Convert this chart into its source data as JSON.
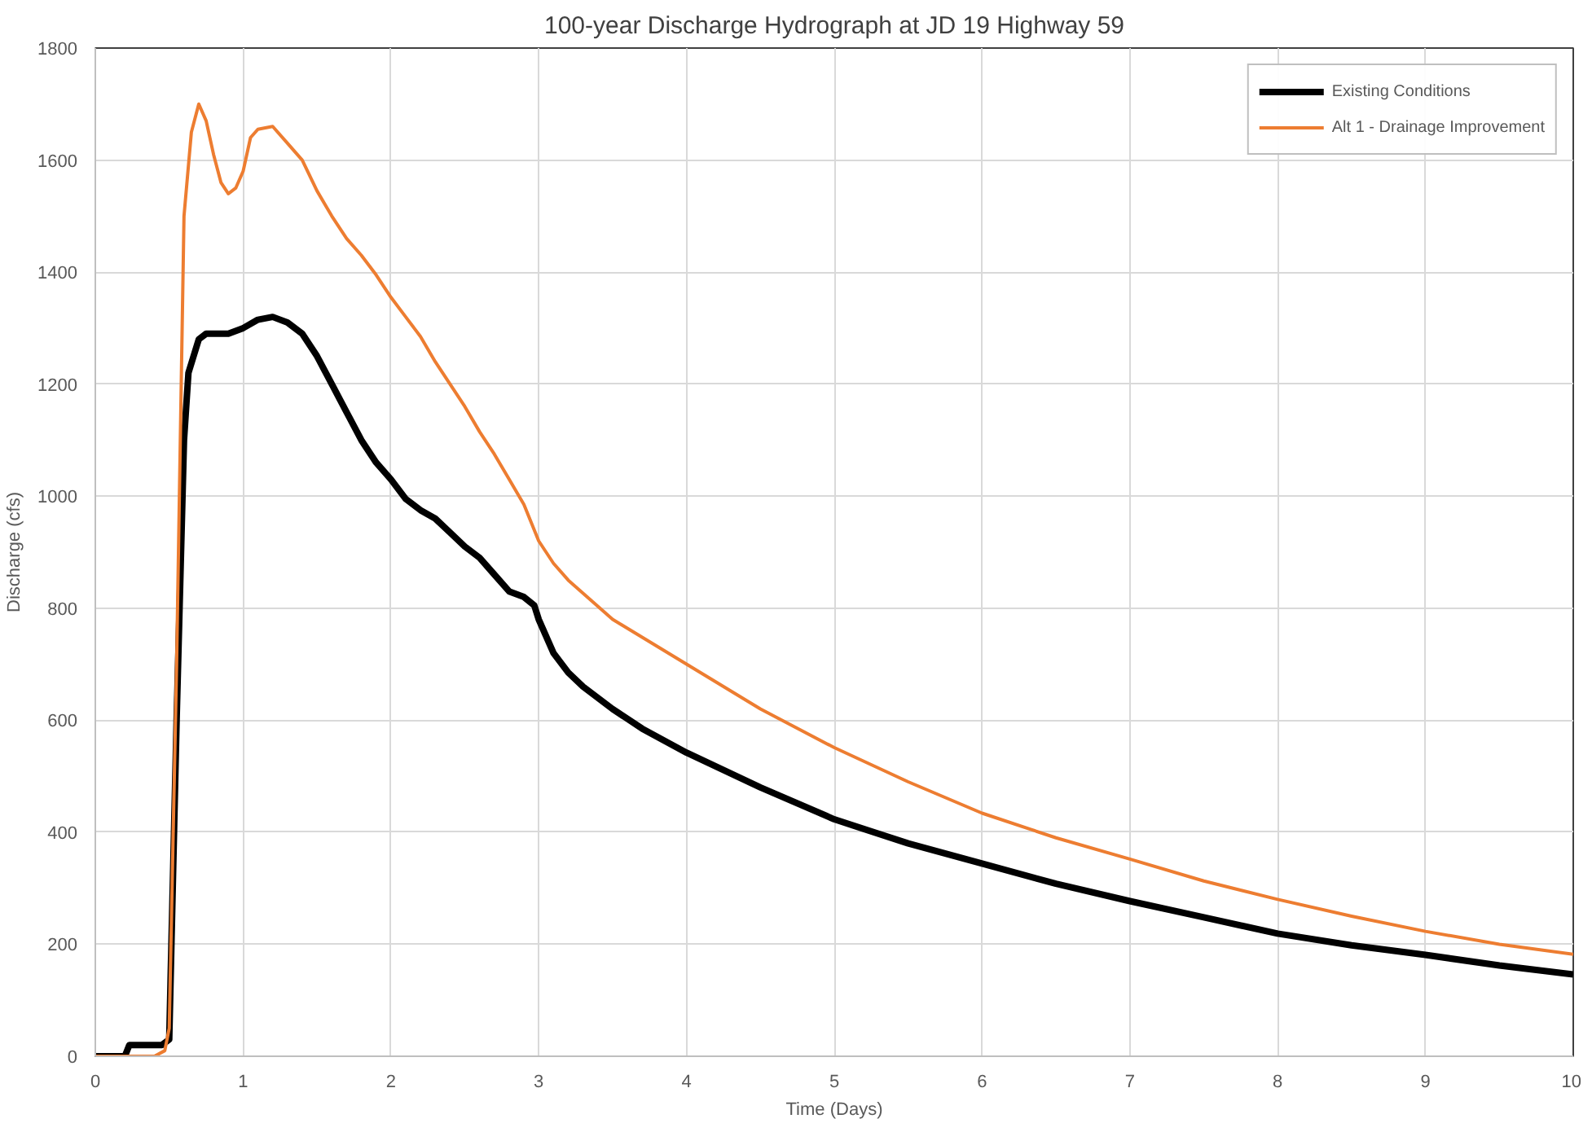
{
  "chart_data": {
    "type": "line",
    "title": "100-year Discharge Hydrograph at JD 19 Highway 59",
    "xlabel": "Time (Days)",
    "ylabel": "Discharge (cfs)",
    "xlim": [
      0,
      10
    ],
    "xticks": [
      0,
      1,
      2,
      3,
      4,
      5,
      6,
      7,
      8,
      9,
      10
    ],
    "ylim": [
      0,
      1800
    ],
    "yticks": [
      0,
      200,
      400,
      600,
      800,
      1000,
      1200,
      1400,
      1600,
      1800
    ],
    "grid": true,
    "legend": "top right",
    "marker": "none",
    "line_style": "solid",
    "series": [
      {
        "name": "Existing Conditions",
        "color": "#000000",
        "x": [
          0,
          0.2,
          0.23,
          0.45,
          0.5,
          0.55,
          0.6,
          0.63,
          0.7,
          0.75,
          0.9,
          1.0,
          1.1,
          1.2,
          1.3,
          1.4,
          1.5,
          1.6,
          1.7,
          1.8,
          1.9,
          2.0,
          2.1,
          2.2,
          2.3,
          2.4,
          2.5,
          2.6,
          2.7,
          2.8,
          2.9,
          2.97,
          3.0,
          3.1,
          3.2,
          3.3,
          3.5,
          3.7,
          4.0,
          4.5,
          5.0,
          5.5,
          6.0,
          6.5,
          7.0,
          7.5,
          8.0,
          8.5,
          9.0,
          9.5,
          10
        ],
        "values": [
          0,
          0,
          20,
          20,
          30,
          600,
          1100,
          1220,
          1280,
          1290,
          1290,
          1300,
          1315,
          1320,
          1310,
          1290,
          1250,
          1200,
          1150,
          1100,
          1060,
          1030,
          995,
          975,
          960,
          935,
          910,
          890,
          860,
          830,
          820,
          805,
          780,
          720,
          685,
          660,
          620,
          585,
          542,
          480,
          423,
          380,
          344,
          308,
          277,
          248,
          219,
          198,
          181,
          162,
          146
        ]
      },
      {
        "name": "Alt 1 - Drainage Improvement",
        "color": "#ed7d31",
        "x": [
          0,
          0.4,
          0.47,
          0.5,
          0.55,
          0.6,
          0.65,
          0.7,
          0.75,
          0.8,
          0.85,
          0.9,
          0.95,
          1.0,
          1.05,
          1.1,
          1.2,
          1.3,
          1.4,
          1.5,
          1.6,
          1.7,
          1.8,
          1.9,
          2.0,
          2.1,
          2.2,
          2.3,
          2.4,
          2.5,
          2.6,
          2.7,
          2.8,
          2.9,
          3.0,
          3.1,
          3.2,
          3.5,
          4.0,
          4.5,
          5.0,
          5.5,
          6.0,
          6.5,
          7.0,
          7.5,
          8.0,
          8.5,
          9.0,
          9.5,
          10
        ],
        "values": [
          0,
          0,
          10,
          50,
          700,
          1500,
          1650,
          1700,
          1670,
          1610,
          1560,
          1540,
          1550,
          1580,
          1640,
          1655,
          1660,
          1630,
          1600,
          1545,
          1500,
          1460,
          1430,
          1395,
          1355,
          1320,
          1285,
          1240,
          1200,
          1160,
          1115,
          1075,
          1030,
          985,
          920,
          880,
          850,
          780,
          700,
          620,
          551,
          490,
          434,
          390,
          352,
          313,
          280,
          250,
          223,
          200,
          182
        ]
      }
    ]
  }
}
